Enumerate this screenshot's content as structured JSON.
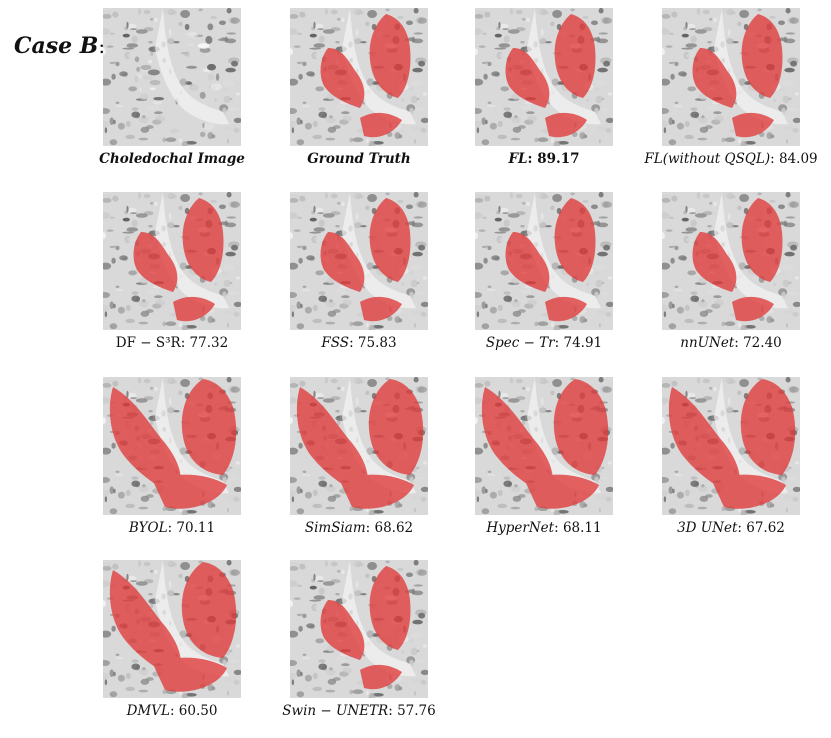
{
  "case": {
    "label": "Case B",
    "colon": ":"
  },
  "texture_color": "#9a9a9a",
  "mask_color": "#e03a3a",
  "panels": [
    {
      "method": "Choledochal Image",
      "score": "",
      "style": "bold-italic",
      "mask": "none"
    },
    {
      "method": "Ground Truth",
      "score": "",
      "style": "bold-italic",
      "mask": "gt"
    },
    {
      "method": "FL",
      "score": "89.17",
      "style": "bold-italic",
      "mask": "gt"
    },
    {
      "method": "FL(without QSQL)",
      "score": "84.09",
      "style": "italic",
      "mask": "gt"
    },
    {
      "method": "DF − S³R",
      "score": "77.32",
      "style": "normal",
      "mask": "gt"
    },
    {
      "method": "FSS",
      "score": "75.83",
      "style": "italic",
      "mask": "gt"
    },
    {
      "method": "Spec − Tr",
      "score": "74.91",
      "style": "italic",
      "mask": "gt"
    },
    {
      "method": "nnUNet",
      "score": "72.40",
      "style": "italic",
      "mask": "gt"
    },
    {
      "method": "BYOL",
      "score": "70.11",
      "style": "italic",
      "mask": "wide"
    },
    {
      "method": "SimSiam",
      "score": "68.62",
      "style": "italic",
      "mask": "wide"
    },
    {
      "method": "HyperNet",
      "score": "68.11",
      "style": "italic",
      "mask": "wide"
    },
    {
      "method": "3D UNet",
      "score": "67.62",
      "style": "italic",
      "mask": "wide"
    },
    {
      "method": "DMVL",
      "score": "60.50",
      "style": "italic",
      "mask": "wide"
    },
    {
      "method": "Swin − UNETR",
      "score": "57.76",
      "style": "italic",
      "mask": "gt"
    }
  ]
}
